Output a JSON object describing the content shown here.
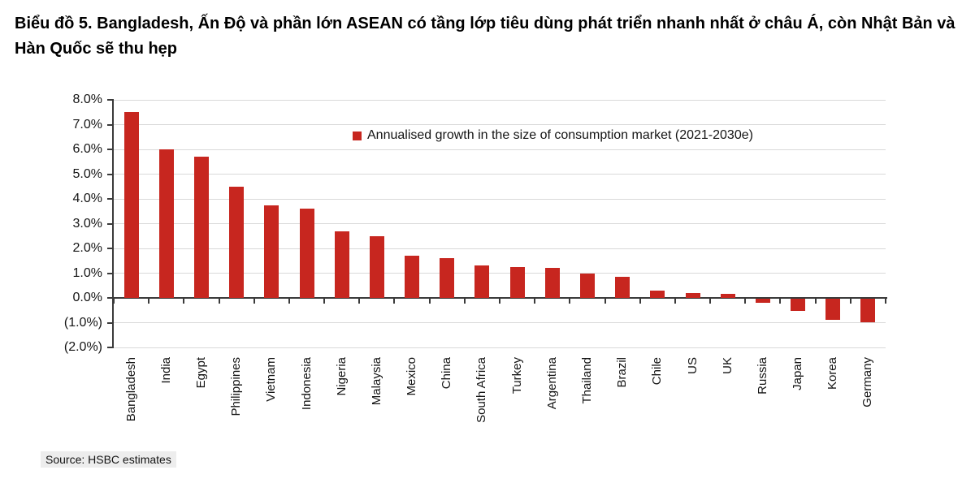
{
  "title": "Biểu đồ 5. Bangladesh, Ấn Độ và phần lớn ASEAN có tầng lớp tiêu dùng phát triển nhanh nhất ở châu Á, còn Nhật Bản và Hàn Quốc sẽ thu hẹp",
  "source": "Source: HSBC estimates",
  "colors": {
    "bar_red": "#C7261F",
    "axis": "#3a3a3a",
    "gridline": "#d9d9d9",
    "text": "#141414"
  },
  "chart_data": {
    "type": "bar",
    "title": "",
    "legend_label": "Annualised growth in the size of consumption market (2021-2030e)",
    "legend_position": "top-right-inside",
    "grid": true,
    "xlabel": "",
    "ylabel": "",
    "ylim": [
      -2,
      8
    ],
    "ytick_step": 1,
    "ytick_labels": [
      "8.0%",
      "7.0%",
      "6.0%",
      "5.0%",
      "4.0%",
      "3.0%",
      "2.0%",
      "1.0%",
      "0.0%",
      "(1.0%)",
      "(2.0%)"
    ],
    "categories": [
      "Bangladesh",
      "India",
      "Egypt",
      "Philippines",
      "Vietnam",
      "Indonesia",
      "Nigeria",
      "Malaysia",
      "Mexico",
      "China",
      "South Africa",
      "Turkey",
      "Argentina",
      "Thailand",
      "Brazil",
      "Chile",
      "US",
      "UK",
      "Russia",
      "Japan",
      "Korea",
      "Germany"
    ],
    "values": [
      7.5,
      6.0,
      5.7,
      4.5,
      3.75,
      3.6,
      2.7,
      2.5,
      1.7,
      1.6,
      1.3,
      1.25,
      1.2,
      1.0,
      0.85,
      0.3,
      0.2,
      0.15,
      -0.15,
      -0.5,
      -0.85,
      -0.95
    ],
    "bar_color": "#C7261F"
  }
}
